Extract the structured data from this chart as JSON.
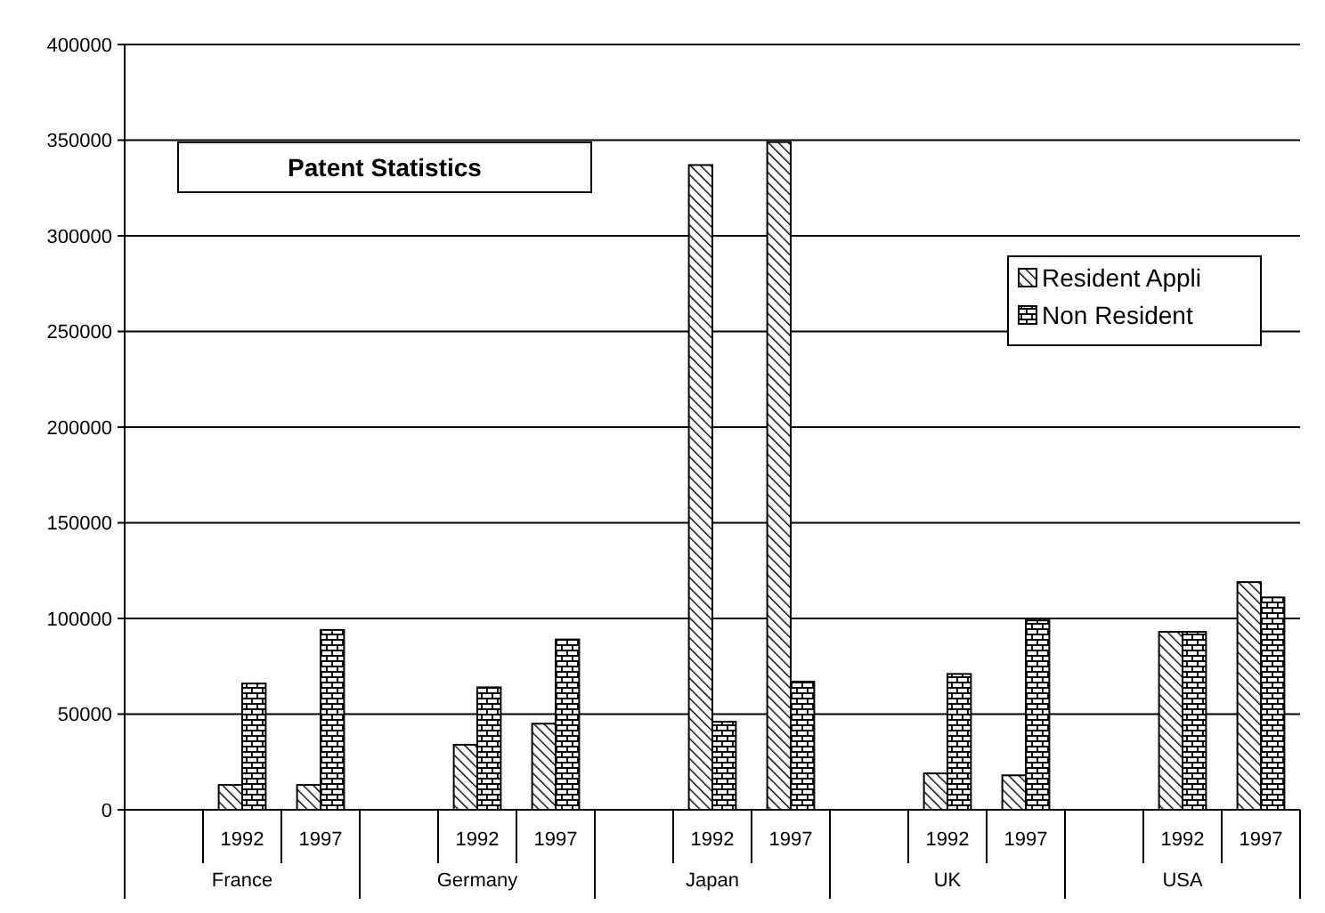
{
  "chart_data": {
    "type": "bar",
    "title": "Patent Statistics",
    "categories": [
      null,
      "1992",
      "1997",
      null,
      "1992",
      "1997",
      null,
      "1992",
      "1997",
      null,
      "1992",
      "1997",
      null,
      "1992",
      "1997"
    ],
    "annotations": [
      "France",
      "Germany",
      "Japan",
      "UK",
      "USA"
    ],
    "series": [
      {
        "name": "Resident Appli",
        "color": "#000000",
        "values": [
          null,
          13000,
          13000,
          null,
          34000,
          45000,
          null,
          337000,
          349000,
          null,
          19000,
          18000,
          null,
          93000,
          119000
        ]
      },
      {
        "name": "Non Resident",
        "color": "#000000",
        "values": [
          null,
          66000,
          94000,
          null,
          64000,
          89000,
          null,
          46000,
          67000,
          null,
          71000,
          99000,
          null,
          93000,
          111000
        ]
      }
    ],
    "ylim": [
      0,
      400000
    ],
    "yticks": [
      0,
      50000,
      100000,
      150000,
      200000,
      250000,
      300000,
      350000,
      400000
    ],
    "grid": "y",
    "legend": "right"
  }
}
